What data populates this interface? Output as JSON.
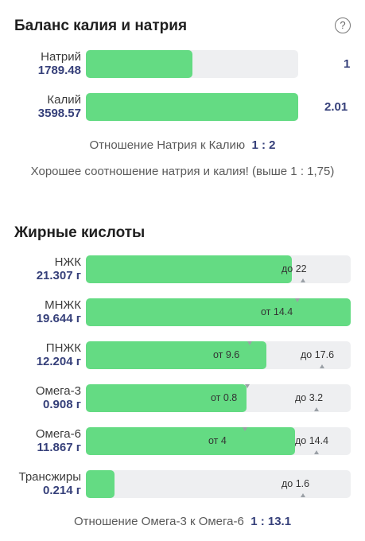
{
  "potassium_sodium": {
    "title": "Баланс калия и натрия",
    "help_icon": "question-circle-icon",
    "sodium": {
      "name": "Натрий",
      "value": "1789.48",
      "ratio": "1",
      "fill_fraction": 0.5
    },
    "potassium": {
      "name": "Калий",
      "value": "3598.57",
      "ratio": "2.01",
      "fill_fraction": 1.0
    },
    "ratio_label": "Отношение Натрия к Калию",
    "ratio_value": "1 : 2",
    "message": "Хорошее соотношение натрия и калия! (выше 1 : 1,75)"
  },
  "fatty_acids": {
    "title": "Жирные кислоты",
    "rows": [
      {
        "name": "НЖК",
        "value": "21.307 г",
        "fill_fraction": 0.777,
        "min_label": "",
        "max_label": "до 22"
      },
      {
        "name": "МНЖК",
        "value": "19.644 г",
        "fill_fraction": 1.0,
        "min_label": "от 14.4",
        "max_label": ""
      },
      {
        "name": "ПНЖК",
        "value": "12.204 г",
        "fill_fraction": 0.681,
        "min_label": "от 9.6",
        "max_label": "до 17.6"
      },
      {
        "name": "Омега-3",
        "value": "0.908 г",
        "fill_fraction": 0.608,
        "min_label": "от 0.8",
        "max_label": "до 3.2"
      },
      {
        "name": "Омега-6",
        "value": "11.867 г",
        "fill_fraction": 0.789,
        "min_label": "от 4",
        "max_label": "до 14.4"
      },
      {
        "name": "Трансжиры",
        "value": "0.214 г",
        "fill_fraction": 0.108,
        "min_label": "",
        "max_label": "до 1.6"
      }
    ],
    "ratio_label": "Отношение Омега-3 к Омега-6",
    "ratio_value": "1 : 13.1"
  },
  "colors": {
    "fill": "#64db83",
    "track": "#eeeff1",
    "value": "#36407a"
  }
}
